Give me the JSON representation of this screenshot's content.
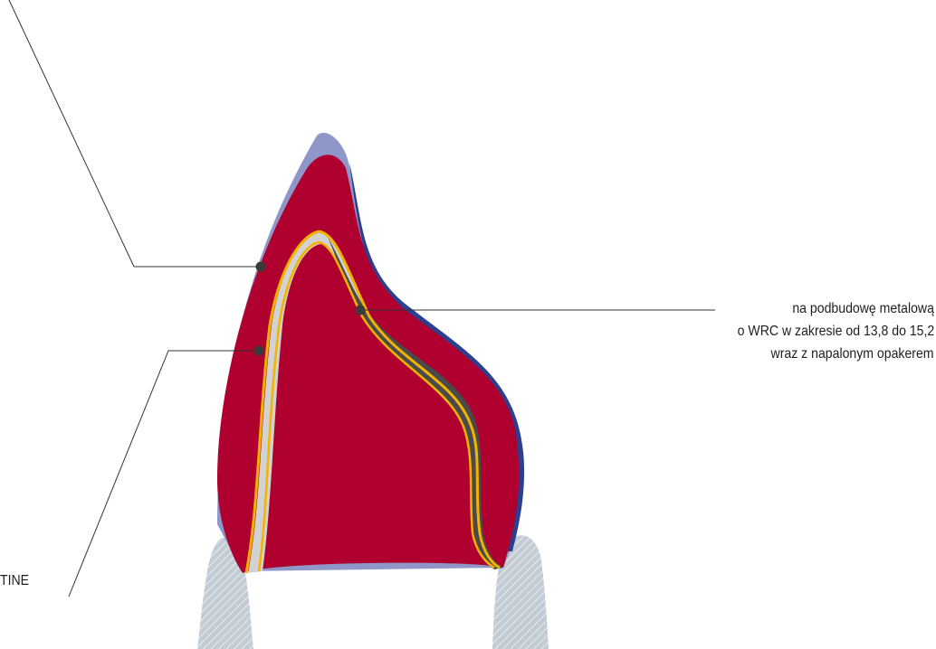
{
  "labels": {
    "metal_note": {
      "line1": "na podbudowę metalową",
      "line2": "o WRC w zakresie od 13,8 do 15,2",
      "line3": "wraz z napalonym opakerem"
    },
    "dentine_fragment": "TINE"
  },
  "colors": {
    "outer_layer": "#8f96c8",
    "outer_layer_dark": "#2b3f8f",
    "body_layer": "#b00030",
    "gold_line": "#f2b400",
    "coping": "#d2d2d2",
    "coping_dark": "#4a4a4a",
    "tooth_stump": "#c3ccd4",
    "leader_line": "#333333",
    "marker": "#3a3a3a"
  }
}
